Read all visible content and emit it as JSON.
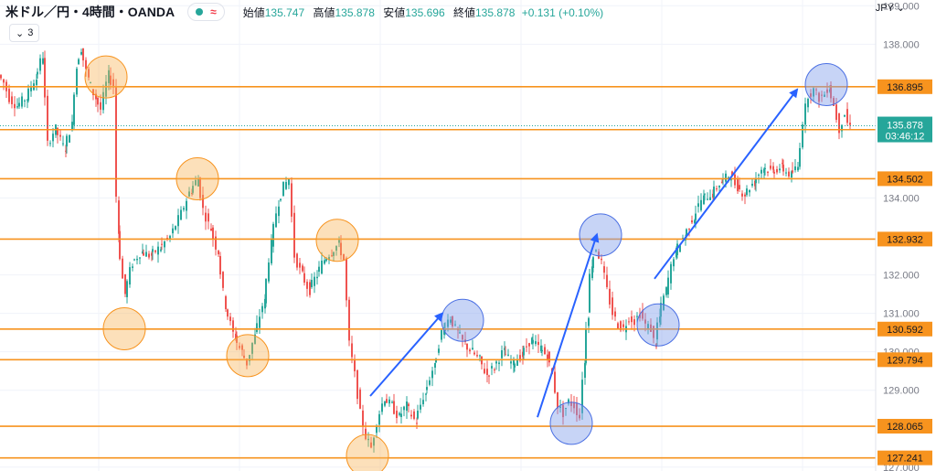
{
  "header": {
    "symbol": "米ドル／円・4時間・OANDA",
    "wave_icon": "≈",
    "open_label": "始値",
    "open_value": "135.747",
    "high_label": "高値",
    "high_value": "135.878",
    "low_label": "安値",
    "low_value": "135.696",
    "close_label": "終値",
    "close_value": "135.878",
    "change": "+0.131 (+0.10%)",
    "indicator_count": "3"
  },
  "currency": "JPY",
  "colors": {
    "up": "#26a69a",
    "down": "#ef5350",
    "level_line": "#f7931e",
    "orange_circle": "#f7931e",
    "blue_circle": "#4a6fe3",
    "arrow": "#2962ff"
  },
  "chart_data": {
    "type": "candlestick",
    "y_axis": {
      "ylim": [
        126.9,
        139.15
      ],
      "ticks": [
        "139.000",
        "138.000",
        "134.000",
        "132.000",
        "131.000",
        "130.000",
        "129.000",
        "127.000"
      ]
    },
    "levels": [
      {
        "value": 136.895,
        "label": "136.895"
      },
      {
        "value": 135.778,
        "label": "135.778"
      },
      {
        "value": 134.502,
        "label": "134.502"
      },
      {
        "value": 132.932,
        "label": "132.932"
      },
      {
        "value": 130.592,
        "label": "130.592"
      },
      {
        "value": 129.794,
        "label": "129.794"
      },
      {
        "value": 128.065,
        "label": "128.065"
      },
      {
        "value": 127.241,
        "label": "127.241"
      }
    ],
    "current_price": {
      "value": 135.878,
      "label": "135.878",
      "countdown": "03:46:12"
    },
    "path": [
      [
        0,
        137.2
      ],
      [
        6,
        137.0
      ],
      [
        12,
        136.6
      ],
      [
        20,
        136.4
      ],
      [
        30,
        136.6
      ],
      [
        40,
        137.1
      ],
      [
        48,
        137.7
      ],
      [
        54,
        135.4
      ],
      [
        62,
        135.8
      ],
      [
        72,
        135.3
      ],
      [
        80,
        135.9
      ],
      [
        85,
        137.4
      ],
      [
        90,
        137.9
      ],
      [
        98,
        137.1
      ],
      [
        106,
        136.6
      ],
      [
        112,
        136.3
      ],
      [
        120,
        137.2
      ],
      [
        126,
        136.9
      ],
      [
        130,
        133.1
      ],
      [
        138,
        131.5
      ],
      [
        146,
        132.3
      ],
      [
        156,
        132.6
      ],
      [
        166,
        132.5
      ],
      [
        176,
        132.7
      ],
      [
        188,
        133.0
      ],
      [
        200,
        133.6
      ],
      [
        210,
        134.2
      ],
      [
        218,
        134.5
      ],
      [
        224,
        133.7
      ],
      [
        232,
        133.2
      ],
      [
        240,
        132.6
      ],
      [
        248,
        131.2
      ],
      [
        258,
        130.4
      ],
      [
        266,
        130.0
      ],
      [
        272,
        129.7
      ],
      [
        280,
        130.4
      ],
      [
        290,
        131.3
      ],
      [
        298,
        132.8
      ],
      [
        306,
        133.9
      ],
      [
        312,
        134.3
      ],
      [
        318,
        134.5
      ],
      [
        324,
        132.5
      ],
      [
        332,
        132.0
      ],
      [
        340,
        131.6
      ],
      [
        348,
        132.0
      ],
      [
        356,
        132.4
      ],
      [
        364,
        132.6
      ],
      [
        372,
        132.8
      ],
      [
        378,
        132.4
      ],
      [
        384,
        130.2
      ],
      [
        390,
        129.4
      ],
      [
        396,
        128.4
      ],
      [
        402,
        127.8
      ],
      [
        408,
        127.5
      ],
      [
        414,
        128.2
      ],
      [
        422,
        128.8
      ],
      [
        430,
        128.6
      ],
      [
        438,
        128.3
      ],
      [
        446,
        128.6
      ],
      [
        456,
        128.2
      ],
      [
        466,
        128.9
      ],
      [
        476,
        129.6
      ],
      [
        486,
        130.6
      ],
      [
        494,
        130.9
      ],
      [
        502,
        130.5
      ],
      [
        510,
        130.2
      ],
      [
        518,
        130.0
      ],
      [
        526,
        129.8
      ],
      [
        534,
        129.4
      ],
      [
        542,
        129.6
      ],
      [
        552,
        130.0
      ],
      [
        562,
        129.7
      ],
      [
        572,
        129.9
      ],
      [
        582,
        130.3
      ],
      [
        592,
        130.1
      ],
      [
        600,
        129.9
      ],
      [
        606,
        129.4
      ],
      [
        612,
        128.6
      ],
      [
        618,
        128.4
      ],
      [
        624,
        128.7
      ],
      [
        630,
        128.6
      ],
      [
        636,
        128.3
      ],
      [
        640,
        129.7
      ],
      [
        644,
        131.0
      ],
      [
        648,
        132.3
      ],
      [
        654,
        132.7
      ],
      [
        660,
        132.3
      ],
      [
        666,
        131.6
      ],
      [
        672,
        131.0
      ],
      [
        678,
        130.7
      ],
      [
        684,
        130.6
      ],
      [
        690,
        130.9
      ],
      [
        696,
        130.8
      ],
      [
        702,
        131.0
      ],
      [
        708,
        130.7
      ],
      [
        714,
        130.6
      ],
      [
        718,
        130.2
      ],
      [
        722,
        130.9
      ],
      [
        730,
        131.6
      ],
      [
        740,
        132.6
      ],
      [
        750,
        133.0
      ],
      [
        760,
        133.5
      ],
      [
        770,
        134.0
      ],
      [
        780,
        134.1
      ],
      [
        790,
        134.4
      ],
      [
        800,
        134.6
      ],
      [
        808,
        134.3
      ],
      [
        816,
        134.1
      ],
      [
        826,
        134.4
      ],
      [
        836,
        134.8
      ],
      [
        846,
        134.7
      ],
      [
        856,
        134.8
      ],
      [
        866,
        134.6
      ],
      [
        874,
        134.8
      ],
      [
        880,
        136.0
      ],
      [
        886,
        136.7
      ],
      [
        892,
        136.8
      ],
      [
        898,
        136.6
      ],
      [
        904,
        136.7
      ],
      [
        908,
        136.9
      ],
      [
        914,
        136.4
      ],
      [
        920,
        135.8
      ],
      [
        926,
        136.2
      ],
      [
        930,
        135.88
      ]
    ],
    "highlights": [
      {
        "color": "orange",
        "x": 116,
        "value": 137.15
      },
      {
        "color": "orange",
        "x": 216,
        "value": 134.5
      },
      {
        "color": "orange",
        "x": 136,
        "value": 130.6
      },
      {
        "color": "orange",
        "x": 271,
        "value": 129.9
      },
      {
        "color": "orange",
        "x": 369,
        "value": 132.9
      },
      {
        "color": "orange",
        "x": 402,
        "value": 127.3
      },
      {
        "color": "blue",
        "x": 506,
        "value": 130.82
      },
      {
        "color": "blue",
        "x": 657,
        "value": 133.04
      },
      {
        "color": "blue",
        "x": 625,
        "value": 128.14
      },
      {
        "color": "blue",
        "x": 720,
        "value": 130.7
      },
      {
        "color": "blue",
        "x": 904,
        "value": 136.95
      }
    ],
    "arrows": [
      {
        "from": [
          405,
          128.85
        ],
        "to": [
          484,
          131.0
        ]
      },
      {
        "from": [
          588,
          128.3
        ],
        "to": [
          653,
          133.05
        ]
      },
      {
        "from": [
          716,
          131.9
        ],
        "to": [
          872,
          136.82
        ]
      }
    ]
  }
}
